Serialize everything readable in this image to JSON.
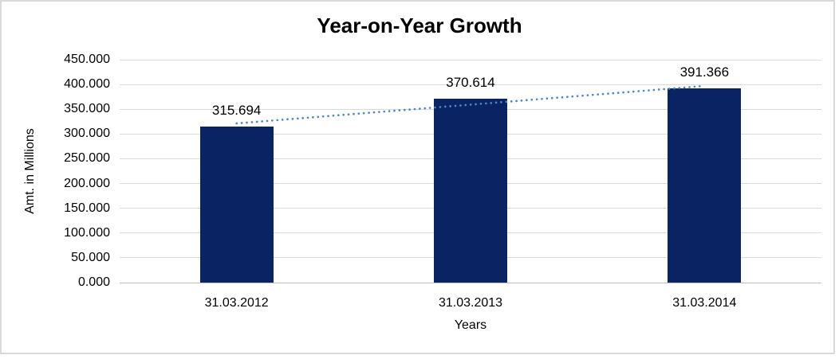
{
  "window": {
    "background_color": "#ffffff",
    "frame_border_color": "#d9d9d9"
  },
  "chart_data": {
    "type": "bar",
    "title": "Year-on-Year Growth",
    "xlabel": "Years",
    "ylabel": "Amt. in Millions",
    "categories": [
      "31.03.2012",
      "31.03.2013",
      "31.03.2014"
    ],
    "values": [
      315.694,
      370.614,
      391.366
    ],
    "data_labels": [
      "315.694",
      "370.614",
      "391.366"
    ],
    "ylim": [
      0,
      450
    ],
    "ytick_step": 50,
    "ytick_labels": [
      "0.000",
      "50.000",
      "100.000",
      "150.000",
      "200.000",
      "250.000",
      "300.000",
      "350.000",
      "400.000",
      "450.000"
    ],
    "grid": true,
    "legend_position": "none",
    "bar_color": "#092363",
    "gridline_color": "#d9d9d9",
    "axis_line_color": "#bfbfbf",
    "text_color": "#000000",
    "trendline": {
      "type": "linear",
      "style": "dotted",
      "color": "#4e86c6"
    }
  }
}
